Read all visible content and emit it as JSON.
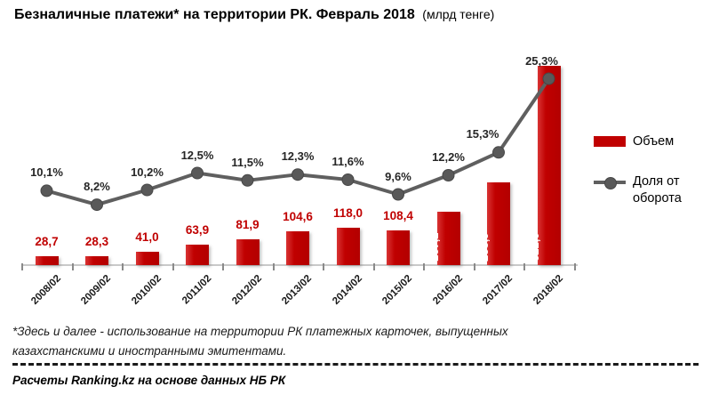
{
  "title": {
    "main": "Безналичные платежи*  на территории РК. Февраль 2018",
    "unit": "(млрд тенге)"
  },
  "legend": [
    {
      "label": "Объем",
      "swatch": "red-bar"
    },
    {
      "label": "Доля от оборота",
      "swatch": "gray-line-marker"
    }
  ],
  "footnote": {
    "text": "*Здесь и далее - использование на территории РК платежных карточек, выпущенных казахстанскими и иностранными эмитентами.",
    "source": "Расчеты Ranking.kz на основе данных НБ РК"
  },
  "colors": {
    "bar": "#c00000",
    "line": "#5f5f5f",
    "marker": "#595959",
    "axis": "#c9c9c9",
    "bar_label": "#c00000",
    "pct_label": "#262626"
  },
  "chart_data": {
    "type": "bar",
    "combo": "bar+line",
    "title": "Безналичные платежи* на территории РК. Февраль 2018 (млрд тенге)",
    "categories": [
      "2008/02",
      "2009/02",
      "2010/02",
      "2011/02",
      "2012/02",
      "2013/02",
      "2014/02",
      "2015/02",
      "2016/02",
      "2017/02",
      "2018/02"
    ],
    "series": [
      {
        "name": "Объем",
        "type": "bar",
        "axis": "left",
        "values": [
          28.7,
          28.3,
          41.0,
          63.9,
          81.9,
          104.6,
          118.0,
          108.4,
          167.2,
          258.9,
          622.0
        ],
        "labels": [
          "28,7",
          "28,3",
          "41,0",
          "63,9",
          "81,9",
          "104,6",
          "118,0",
          "108,4",
          "167,2",
          "258,9",
          "622,0"
        ],
        "label_position": [
          "outside",
          "outside",
          "outside",
          "outside",
          "outside",
          "outside",
          "outside",
          "outside",
          "inside-vertical",
          "inside-vertical",
          "inside-vertical"
        ]
      },
      {
        "name": "Доля от оборота",
        "type": "line",
        "axis": "right",
        "values": [
          10.1,
          8.2,
          10.2,
          12.5,
          11.5,
          12.3,
          11.6,
          9.6,
          12.2,
          15.3,
          25.3
        ],
        "labels": [
          "10,1%",
          "8,2%",
          "10,2%",
          "12,5%",
          "11,5%",
          "12,3%",
          "11,6%",
          "9,6%",
          "12,2%",
          "15,3%",
          "25,3%"
        ]
      }
    ],
    "xlabel": "",
    "ylabel": "",
    "y_left_range": [
      0,
      700
    ],
    "y_right_range_pct": [
      0,
      30
    ],
    "grid": false,
    "legend_position": "right"
  }
}
